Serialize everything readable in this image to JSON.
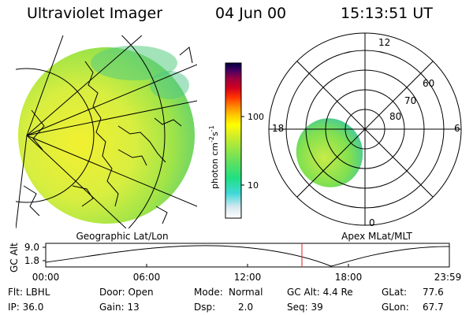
{
  "header": {
    "title": "Ultraviolet Imager",
    "date": "04 Jun 00",
    "time": "15:13:51 UT"
  },
  "geo_panel": {
    "caption": "Geographic Lat/Lon"
  },
  "polar_panel": {
    "caption": "Apex MLat/MLT",
    "mlt_labels": [
      "12",
      "6",
      "0",
      "18"
    ],
    "lat_labels": [
      "60",
      "70",
      "80"
    ]
  },
  "colorbar": {
    "unit_label": "photon cm",
    "unit_sup1": "-2",
    "unit_mid": "s",
    "unit_sup2": "-1",
    "scale": "log",
    "tick_labels": [
      "100",
      "10"
    ],
    "tick_values": [
      100,
      10
    ],
    "colors": [
      "#ffffff",
      "#d8e8f0",
      "#40d8d8",
      "#20e080",
      "#60e060",
      "#a0e840",
      "#e0f020",
      "#ffff00",
      "#ffcc00",
      "#ff8800",
      "#ff3300",
      "#d0001f",
      "#9a0040",
      "#4a0060",
      "#000040"
    ]
  },
  "altitude_plot": {
    "ylabel": "GC Alt",
    "y_ticks": [
      "9.0",
      "1.8"
    ],
    "x_ticks": [
      "00:00",
      "06:00",
      "12:00",
      "18:00",
      "23:59"
    ],
    "current_time_marker": "15:13:51"
  },
  "info": {
    "flt": "Flt: LBHL",
    "ip": "IP: 36.0",
    "door": "Door: Open",
    "gain": "Gain: 13",
    "mode_label": "Mode:",
    "mode_value": "Normal",
    "dsp_label": "Dsp:",
    "dsp_value": "2.0",
    "gcalt": "GC Alt: 4.4 Re",
    "seq": "Seq: 39",
    "glat_label": "GLat:",
    "glat_value": "77.6",
    "glon_label": "GLon:",
    "glon_value": "67.7"
  },
  "colors": {
    "image_yellow": "#e8f040",
    "image_green": "#80e040",
    "image_cyan": "#40c8b0",
    "marker_red": "#e02020"
  }
}
